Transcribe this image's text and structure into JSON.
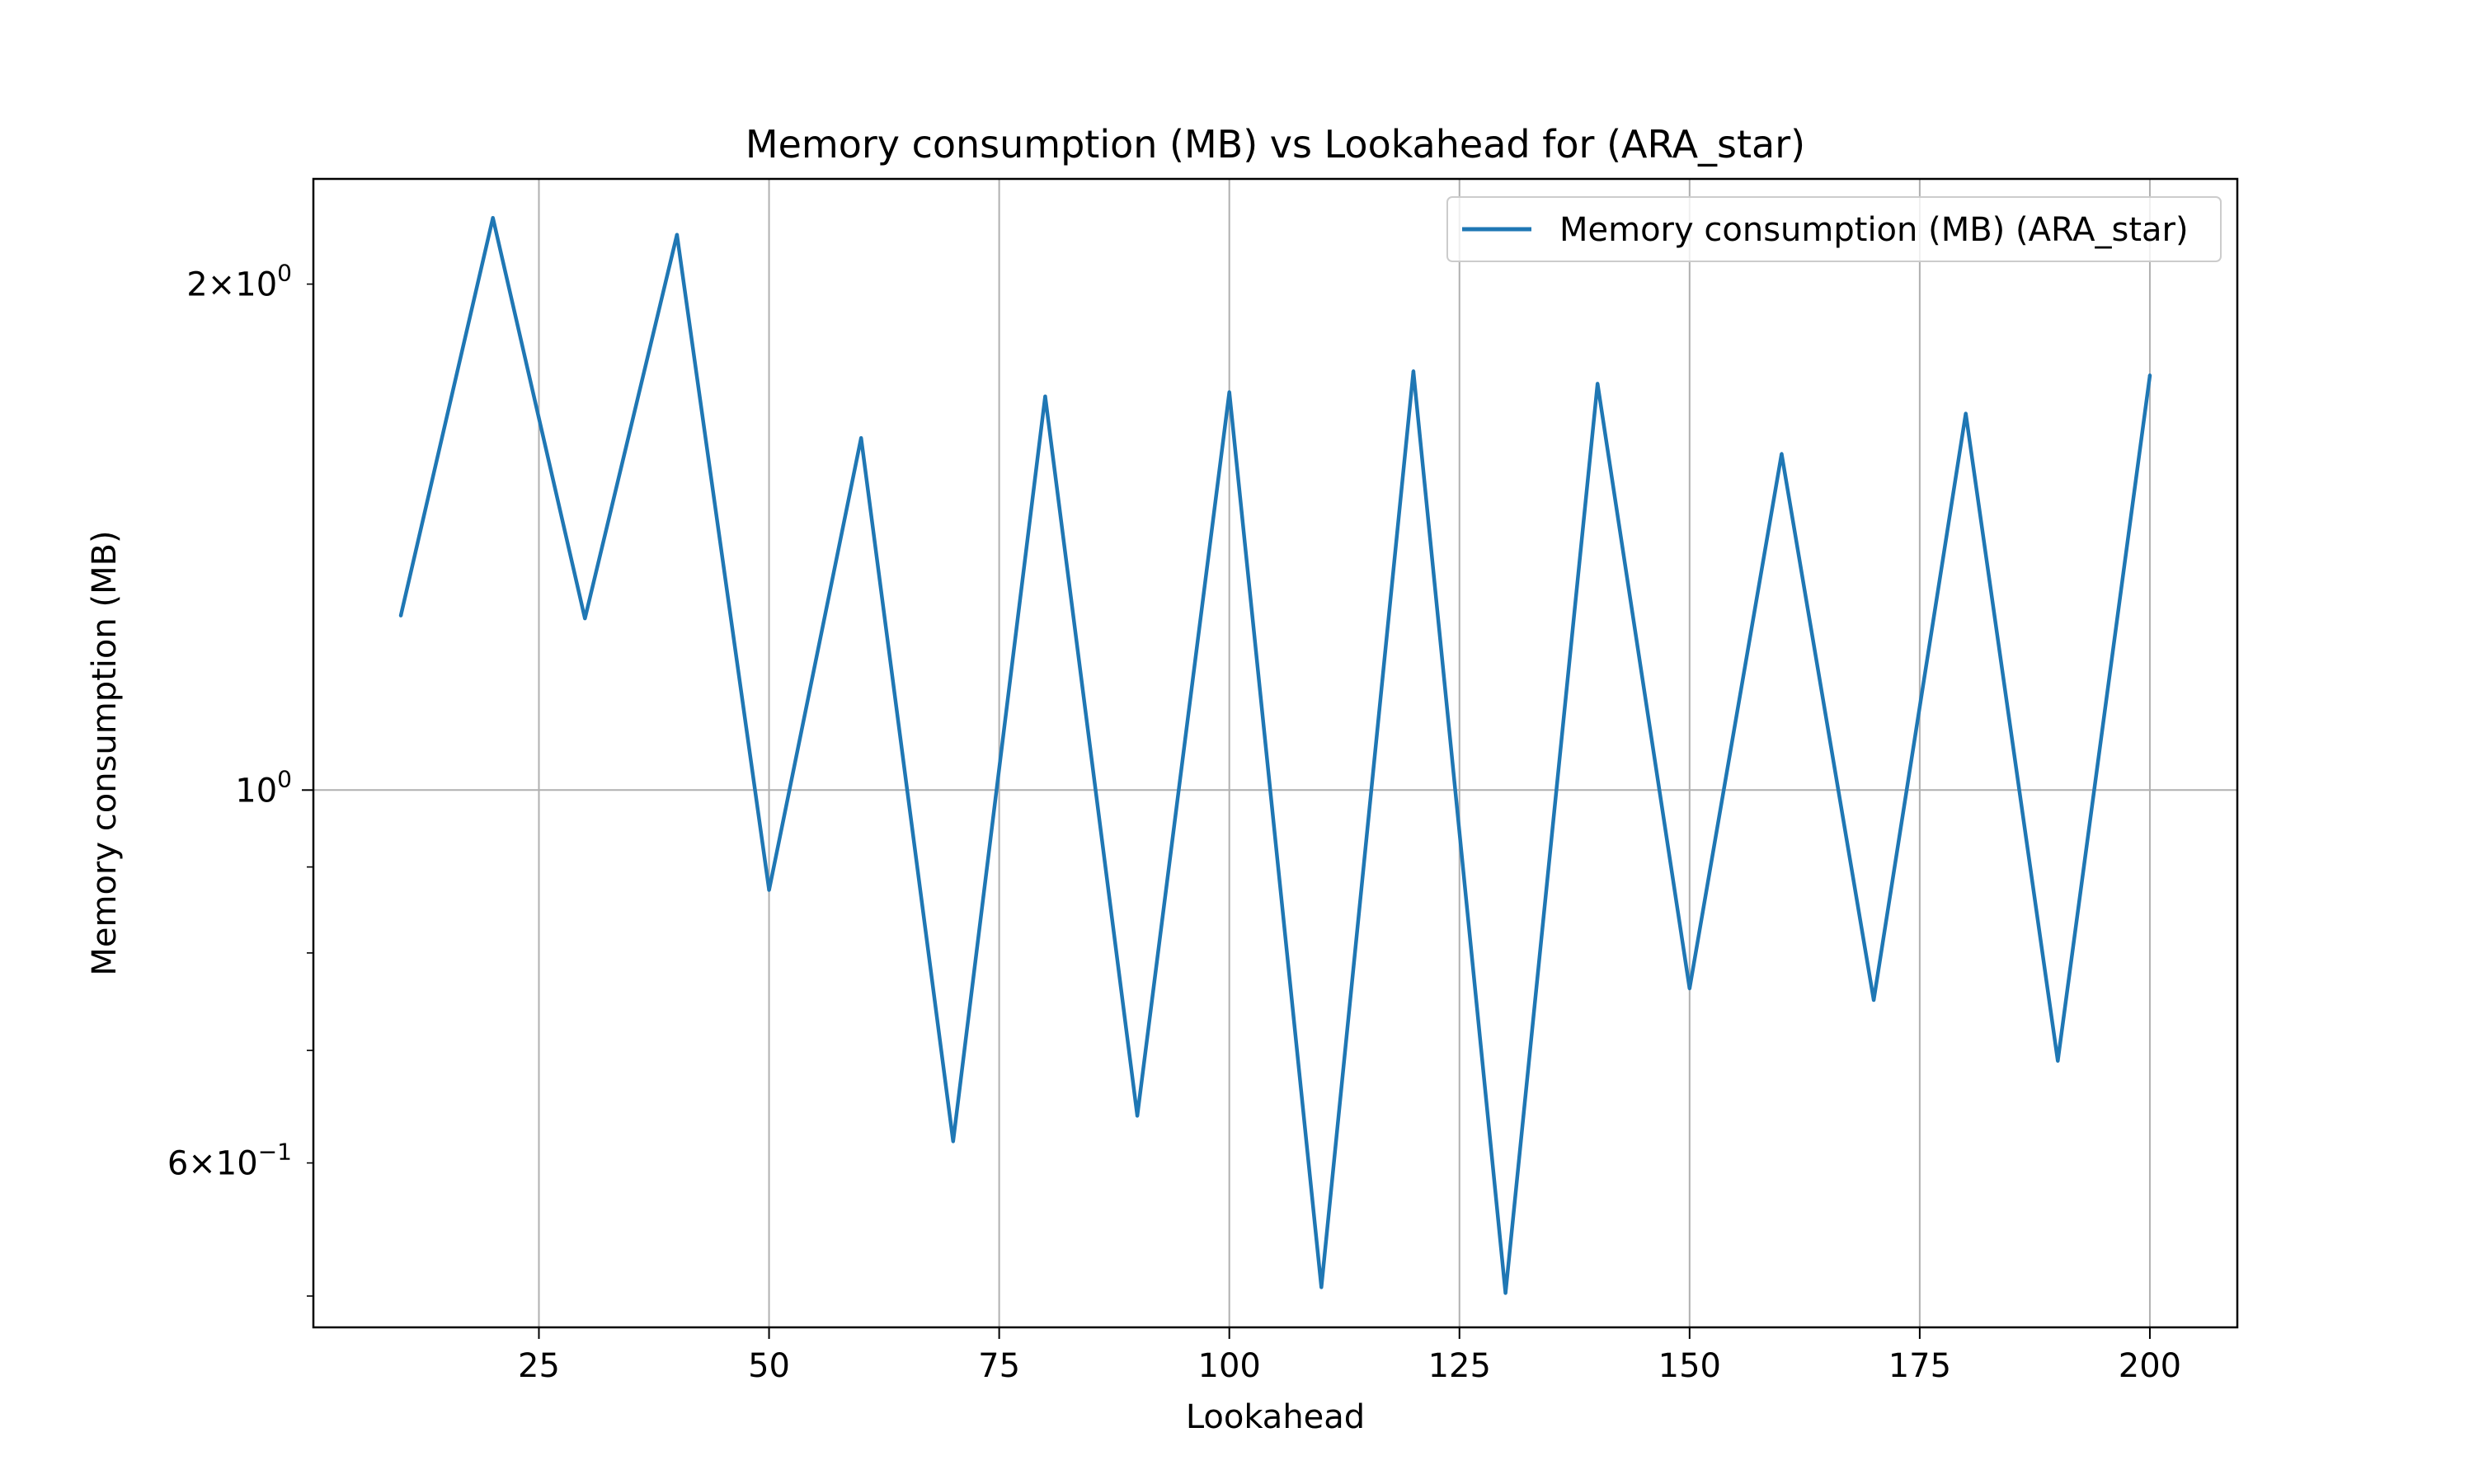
{
  "chart_data": {
    "type": "line",
    "title": "Memory consumption (MB) vs Lookahead for  (ARA_star)",
    "xlabel": "Lookahead",
    "ylabel": "Memory consumption (MB)",
    "x_scale": "linear",
    "y_scale": "log",
    "xlim": [
      0.5,
      209.5
    ],
    "ylim": [
      0.479,
      2.31
    ],
    "x_ticks": [
      25,
      50,
      75,
      100,
      125,
      150,
      175,
      200
    ],
    "y_major_ticks": [
      {
        "value": 1,
        "base": "10",
        "exp": "0"
      }
    ],
    "y_minor_labeled_ticks": [
      {
        "value": 2,
        "mant": "2",
        "base": "10",
        "exp": "0"
      },
      {
        "value": 0.6,
        "mant": "6",
        "base": "10",
        "exp": "−1"
      }
    ],
    "y_minor_ticks": [
      0.5,
      0.6,
      0.7,
      0.8,
      0.9,
      2
    ],
    "grid": true,
    "legend_position": "upper right",
    "colors": {
      "series": "#1f77b4",
      "grid": "#b0b0b0"
    },
    "series": [
      {
        "name": "Memory consumption (MB) (ARA_star)",
        "x": [
          10,
          20,
          30,
          40,
          50,
          60,
          70,
          80,
          90,
          100,
          110,
          120,
          130,
          140,
          150,
          160,
          170,
          180,
          190,
          200
        ],
        "values": [
          1.27,
          2.19,
          1.265,
          2.14,
          0.872,
          1.62,
          0.618,
          1.715,
          0.64,
          1.725,
          0.506,
          1.775,
          0.502,
          1.745,
          0.762,
          1.585,
          0.75,
          1.675,
          0.69,
          1.765
        ]
      }
    ]
  }
}
